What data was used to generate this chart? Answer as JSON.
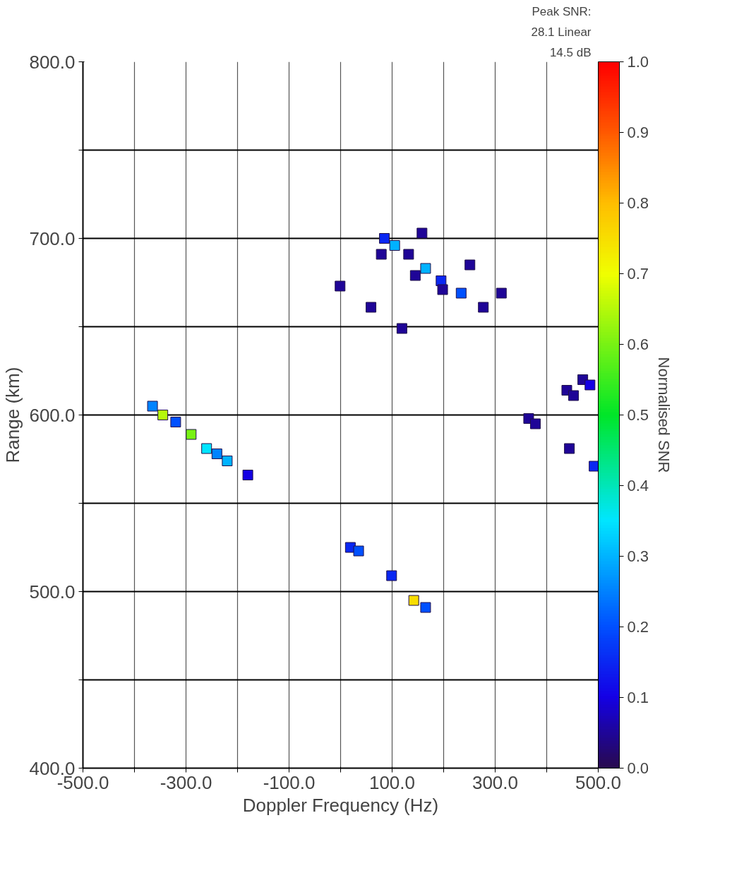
{
  "chart_data": {
    "type": "scatter",
    "xlabel": "Doppler Frequency (Hz)",
    "ylabel": "Range (km)",
    "clabel": "Normalised SNR",
    "annotations": [
      "Peak SNR:",
      "28.1 Linear",
      "14.5 dB"
    ],
    "x": [
      -365,
      -345,
      -320,
      -290,
      -260,
      -240,
      -220,
      -180,
      85,
      105,
      165,
      195,
      234,
      158,
      132,
      79,
      -1,
      59,
      145,
      198,
      251,
      277,
      312,
      119,
      142,
      165,
      99,
      19,
      35,
      470,
      484,
      439,
      452,
      365,
      378,
      444,
      492
    ],
    "values": [
      605,
      600,
      596,
      589,
      581,
      578,
      574,
      566,
      700,
      696,
      683,
      676,
      669,
      703,
      691,
      691,
      673,
      661,
      679,
      671,
      685,
      661,
      669,
      649,
      495,
      491,
      509,
      525,
      523,
      620,
      617,
      614,
      611,
      598,
      595,
      581,
      571
    ],
    "cvalues": [
      0.25,
      0.65,
      0.2,
      0.6,
      0.35,
      0.25,
      0.3,
      0.1,
      0.15,
      0.3,
      0.3,
      0.15,
      0.2,
      0.05,
      0.05,
      0.05,
      0.05,
      0.05,
      0.05,
      0.05,
      0.05,
      0.05,
      0.05,
      0.05,
      0.75,
      0.2,
      0.15,
      0.15,
      0.2,
      0.05,
      0.1,
      0.05,
      0.05,
      0.05,
      0.05,
      0.05,
      0.15
    ],
    "marker": "square",
    "xlim": [
      -500,
      500
    ],
    "xticks": [
      {
        "value": -500,
        "label": "-500.0"
      },
      {
        "value": -400,
        "label": null
      },
      {
        "value": -300,
        "label": "-300.0"
      },
      {
        "value": -200,
        "label": null
      },
      {
        "value": -100,
        "label": "-100.0"
      },
      {
        "value": 0,
        "label": null
      },
      {
        "value": 100,
        "label": "100.0"
      },
      {
        "value": 200,
        "label": null
      },
      {
        "value": 300,
        "label": "300.0"
      },
      {
        "value": 400,
        "label": null
      },
      {
        "value": 500,
        "label": "500.0"
      }
    ],
    "ylim": [
      400,
      800
    ],
    "yticks": [
      {
        "value": 400,
        "label": "400.0"
      },
      {
        "value": 450,
        "label": null
      },
      {
        "value": 500,
        "label": "500.0"
      },
      {
        "value": 550,
        "label": null
      },
      {
        "value": 600,
        "label": "600.0"
      },
      {
        "value": 650,
        "label": null
      },
      {
        "value": 700,
        "label": "700.0"
      },
      {
        "value": 750,
        "label": null
      },
      {
        "value": 800,
        "label": "800.0"
      }
    ],
    "clim": [
      0,
      1
    ],
    "cticks": [
      {
        "value": 0,
        "label": "0.0"
      },
      {
        "value": 0.1,
        "label": "0.1"
      },
      {
        "value": 0.2,
        "label": "0.2"
      },
      {
        "value": 0.3,
        "label": "0.3"
      },
      {
        "value": 0.4,
        "label": "0.4"
      },
      {
        "value": 0.5,
        "label": "0.5"
      },
      {
        "value": 0.6,
        "label": "0.6"
      },
      {
        "value": 0.7,
        "label": "0.7"
      },
      {
        "value": 0.8,
        "label": "0.8"
      },
      {
        "value": 0.9,
        "label": "0.9"
      },
      {
        "value": 1.0,
        "label": "1.0"
      }
    ],
    "grid": true
  }
}
